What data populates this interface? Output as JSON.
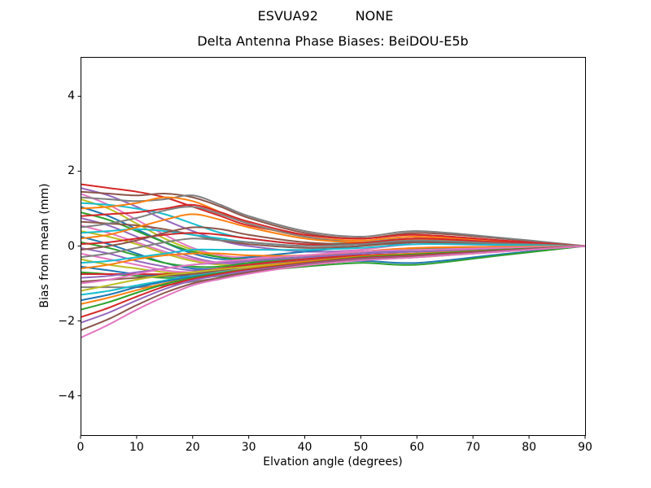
{
  "figure": {
    "suptitle": "ESVUA92         NONE",
    "title": "Delta Antenna Phase Biases: BeiDOU-E5b",
    "xlabel": "Elvation angle (degrees)",
    "ylabel": "Bias from mean (mm)"
  },
  "chart_data": {
    "type": "line",
    "suptitle": "ESVUA92         NONE",
    "title": "Delta Antenna Phase Biases: BeiDOU-E5b",
    "xlabel": "Elvation angle (degrees)",
    "ylabel": "Bias from mean (mm)",
    "xlim": [
      0,
      90
    ],
    "ylim": [
      -5.05,
      5.05
    ],
    "xticks": [
      0,
      10,
      20,
      30,
      40,
      50,
      60,
      70,
      80,
      90
    ],
    "yticks": [
      -4,
      -2,
      0,
      2,
      4
    ],
    "grid": false,
    "legend": null,
    "line_width": 2,
    "axis_color": "#000000",
    "background": "#ffffff",
    "palette": [
      "#1f77b4",
      "#ff7f0e",
      "#2ca02c",
      "#d62728",
      "#9467bd",
      "#8c564b",
      "#e377c2",
      "#7f7f7f",
      "#bcbd22",
      "#17becf"
    ],
    "x": [
      0,
      5,
      10,
      15,
      20,
      25,
      30,
      40,
      50,
      60,
      75,
      90
    ],
    "series": [
      {
        "color": "#d62728",
        "y": [
          1.65,
          1.55,
          1.45,
          1.3,
          1.05,
          0.8,
          0.55,
          0.3,
          0.2,
          0.3,
          0.15,
          0
        ]
      },
      {
        "color": "#9467bd",
        "y": [
          1.55,
          1.35,
          1.05,
          0.7,
          0.4,
          0.15,
          0.0,
          -0.15,
          -0.1,
          0.1,
          0.05,
          0
        ]
      },
      {
        "color": "#8c564b",
        "y": [
          1.45,
          1.4,
          1.35,
          1.4,
          1.3,
          1.05,
          0.75,
          0.35,
          0.2,
          0.35,
          0.2,
          0
        ]
      },
      {
        "color": "#e377c2",
        "y": [
          1.4,
          1.1,
          0.7,
          0.3,
          -0.05,
          -0.25,
          -0.3,
          -0.25,
          -0.1,
          0.05,
          0.02,
          0
        ]
      },
      {
        "color": "#7f7f7f",
        "y": [
          1.3,
          1.25,
          1.2,
          1.25,
          1.35,
          1.1,
          0.8,
          0.4,
          0.25,
          0.4,
          0.22,
          0
        ]
      },
      {
        "color": "#bcbd22",
        "y": [
          1.25,
          1.0,
          0.6,
          0.2,
          -0.1,
          -0.3,
          -0.4,
          -0.35,
          -0.2,
          -0.1,
          -0.05,
          0
        ]
      },
      {
        "color": "#17becf",
        "y": [
          1.15,
          1.1,
          1.0,
          0.85,
          0.6,
          0.35,
          0.2,
          0.05,
          0.1,
          0.2,
          0.1,
          0
        ]
      },
      {
        "color": "#1f77b4",
        "y": [
          1.05,
          0.8,
          0.45,
          0.1,
          -0.2,
          -0.35,
          -0.3,
          -0.15,
          0.0,
          0.15,
          0.08,
          0
        ]
      },
      {
        "color": "#ff7f0e",
        "y": [
          1.0,
          1.05,
          1.15,
          1.3,
          1.2,
          0.9,
          0.6,
          0.25,
          0.15,
          0.25,
          0.12,
          0
        ]
      },
      {
        "color": "#2ca02c",
        "y": [
          0.9,
          0.7,
          0.4,
          0.1,
          -0.15,
          -0.3,
          -0.35,
          -0.3,
          -0.2,
          -0.15,
          -0.08,
          0
        ]
      },
      {
        "color": "#d62728",
        "y": [
          0.8,
          0.85,
          0.9,
          1.0,
          1.1,
          0.9,
          0.65,
          0.3,
          0.2,
          0.3,
          0.15,
          0
        ]
      },
      {
        "color": "#9467bd",
        "y": [
          0.75,
          0.55,
          0.25,
          -0.05,
          -0.3,
          -0.45,
          -0.45,
          -0.35,
          -0.25,
          -0.2,
          -0.1,
          0
        ]
      },
      {
        "color": "#8c564b",
        "y": [
          0.65,
          0.6,
          0.55,
          0.45,
          0.3,
          0.15,
          0.05,
          -0.05,
          0.0,
          0.1,
          0.05,
          0
        ]
      },
      {
        "color": "#e377c2",
        "y": [
          0.55,
          0.35,
          0.1,
          -0.15,
          -0.35,
          -0.45,
          -0.4,
          -0.3,
          -0.15,
          -0.05,
          -0.02,
          0
        ]
      },
      {
        "color": "#7f7f7f",
        "y": [
          0.5,
          0.6,
          0.75,
          0.95,
          1.05,
          0.85,
          0.6,
          0.25,
          0.1,
          0.2,
          0.1,
          0
        ]
      },
      {
        "color": "#bcbd22",
        "y": [
          0.4,
          0.25,
          0.05,
          -0.2,
          -0.4,
          -0.5,
          -0.5,
          -0.4,
          -0.3,
          -0.25,
          -0.12,
          0
        ]
      },
      {
        "color": "#17becf",
        "y": [
          0.35,
          0.4,
          0.45,
          0.4,
          0.3,
          0.2,
          0.1,
          0.0,
          0.05,
          0.15,
          0.08,
          0
        ]
      },
      {
        "color": "#1f77b4",
        "y": [
          0.25,
          0.05,
          -0.2,
          -0.45,
          -0.6,
          -0.6,
          -0.5,
          -0.35,
          -0.2,
          -0.1,
          -0.05,
          0
        ]
      },
      {
        "color": "#ff7f0e",
        "y": [
          0.2,
          0.3,
          0.5,
          0.7,
          0.85,
          0.7,
          0.5,
          0.2,
          0.1,
          0.18,
          0.08,
          0
        ]
      },
      {
        "color": "#2ca02c",
        "y": [
          0.1,
          -0.05,
          -0.25,
          -0.45,
          -0.55,
          -0.55,
          -0.45,
          -0.3,
          -0.15,
          -0.08,
          -0.04,
          0
        ]
      },
      {
        "color": "#d62728",
        "y": [
          0.05,
          0.1,
          0.2,
          0.3,
          0.35,
          0.3,
          0.2,
          0.05,
          0.08,
          0.2,
          0.1,
          0
        ]
      },
      {
        "color": "#9467bd",
        "y": [
          -0.05,
          -0.2,
          -0.4,
          -0.55,
          -0.65,
          -0.6,
          -0.5,
          -0.35,
          -0.25,
          -0.2,
          -0.1,
          0
        ]
      },
      {
        "color": "#8c564b",
        "y": [
          -0.1,
          0.0,
          0.15,
          0.35,
          0.5,
          0.45,
          0.3,
          0.1,
          0.05,
          0.12,
          0.06,
          0
        ]
      },
      {
        "color": "#e377c2",
        "y": [
          -0.2,
          -0.35,
          -0.5,
          -0.65,
          -0.7,
          -0.65,
          -0.55,
          -0.4,
          -0.3,
          -0.25,
          -0.12,
          0
        ]
      },
      {
        "color": "#7f7f7f",
        "y": [
          -0.3,
          -0.2,
          -0.05,
          0.1,
          0.2,
          0.15,
          0.1,
          0.0,
          0.05,
          0.15,
          0.07,
          0
        ]
      },
      {
        "color": "#bcbd22",
        "y": [
          -0.35,
          -0.5,
          -0.6,
          -0.7,
          -0.75,
          -0.7,
          -0.6,
          -0.45,
          -0.35,
          -0.3,
          -0.15,
          0
        ]
      },
      {
        "color": "#17becf",
        "y": [
          -0.45,
          -0.4,
          -0.3,
          -0.2,
          -0.1,
          -0.1,
          -0.1,
          -0.1,
          -0.05,
          0.05,
          0.03,
          0
        ]
      },
      {
        "color": "#1f77b4",
        "y": [
          -0.55,
          -0.65,
          -0.75,
          -0.8,
          -0.8,
          -0.75,
          -0.65,
          -0.5,
          -0.4,
          -0.45,
          -0.22,
          0
        ]
      },
      {
        "color": "#ff7f0e",
        "y": [
          -0.6,
          -0.5,
          -0.35,
          -0.25,
          -0.2,
          -0.2,
          -0.25,
          -0.25,
          -0.15,
          -0.05,
          -0.02,
          0
        ]
      },
      {
        "color": "#2ca02c",
        "y": [
          -0.7,
          -0.75,
          -0.8,
          -0.85,
          -0.85,
          -0.8,
          -0.7,
          -0.55,
          -0.45,
          -0.5,
          -0.25,
          0
        ]
      },
      {
        "color": "#d62728",
        "y": [
          -0.75,
          -0.75,
          -0.75,
          -0.75,
          -0.7,
          -0.6,
          -0.5,
          -0.35,
          -0.25,
          -0.2,
          -0.1,
          0
        ]
      },
      {
        "color": "#9467bd",
        "y": [
          -0.85,
          -0.8,
          -0.7,
          -0.6,
          -0.5,
          -0.45,
          -0.4,
          -0.3,
          -0.2,
          -0.15,
          -0.08,
          0
        ]
      },
      {
        "color": "#8c564b",
        "y": [
          -0.95,
          -0.9,
          -0.85,
          -0.8,
          -0.75,
          -0.65,
          -0.55,
          -0.4,
          -0.28,
          -0.22,
          -0.1,
          0
        ]
      },
      {
        "color": "#e377c2",
        "y": [
          -1.0,
          -0.9,
          -0.75,
          -0.6,
          -0.5,
          -0.42,
          -0.35,
          -0.25,
          -0.15,
          -0.1,
          -0.05,
          0
        ]
      },
      {
        "color": "#7f7f7f",
        "y": [
          -1.1,
          -1.1,
          -1.1,
          -1.05,
          -0.95,
          -0.85,
          -0.72,
          -0.52,
          -0.38,
          -0.3,
          -0.15,
          0
        ]
      },
      {
        "color": "#bcbd22",
        "y": [
          -1.2,
          -1.05,
          -0.9,
          -0.78,
          -0.7,
          -0.62,
          -0.55,
          -0.42,
          -0.3,
          -0.25,
          -0.12,
          0
        ]
      },
      {
        "color": "#17becf",
        "y": [
          -1.3,
          -1.2,
          -1.05,
          -0.92,
          -0.8,
          -0.7,
          -0.6,
          -0.45,
          -0.32,
          -0.26,
          -0.13,
          0
        ]
      },
      {
        "color": "#1f77b4",
        "y": [
          -1.45,
          -1.3,
          -1.1,
          -0.95,
          -0.82,
          -0.72,
          -0.62,
          -0.46,
          -0.33,
          -0.27,
          -0.13,
          0
        ]
      },
      {
        "color": "#ff7f0e",
        "y": [
          -1.55,
          -1.38,
          -1.18,
          -1.0,
          -0.85,
          -0.72,
          -0.6,
          -0.42,
          -0.28,
          -0.2,
          -0.1,
          0
        ]
      },
      {
        "color": "#2ca02c",
        "y": [
          -1.7,
          -1.5,
          -1.25,
          -1.02,
          -0.85,
          -0.72,
          -0.62,
          -0.45,
          -0.3,
          -0.22,
          -0.1,
          0
        ]
      },
      {
        "color": "#d62728",
        "y": [
          -1.9,
          -1.65,
          -1.35,
          -1.08,
          -0.88,
          -0.74,
          -0.63,
          -0.46,
          -0.32,
          -0.25,
          -0.12,
          0
        ]
      },
      {
        "color": "#9467bd",
        "y": [
          -2.05,
          -1.78,
          -1.45,
          -1.15,
          -0.92,
          -0.78,
          -0.66,
          -0.48,
          -0.34,
          -0.27,
          -0.13,
          0
        ]
      },
      {
        "color": "#8c564b",
        "y": [
          -2.25,
          -1.95,
          -1.58,
          -1.25,
          -1.0,
          -0.84,
          -0.7,
          -0.5,
          -0.36,
          -0.28,
          -0.14,
          0
        ]
      },
      {
        "color": "#e377c2",
        "y": [
          -2.45,
          -2.1,
          -1.7,
          -1.35,
          -1.05,
          -0.88,
          -0.74,
          -0.52,
          -0.38,
          -0.3,
          -0.15,
          0
        ]
      }
    ]
  }
}
